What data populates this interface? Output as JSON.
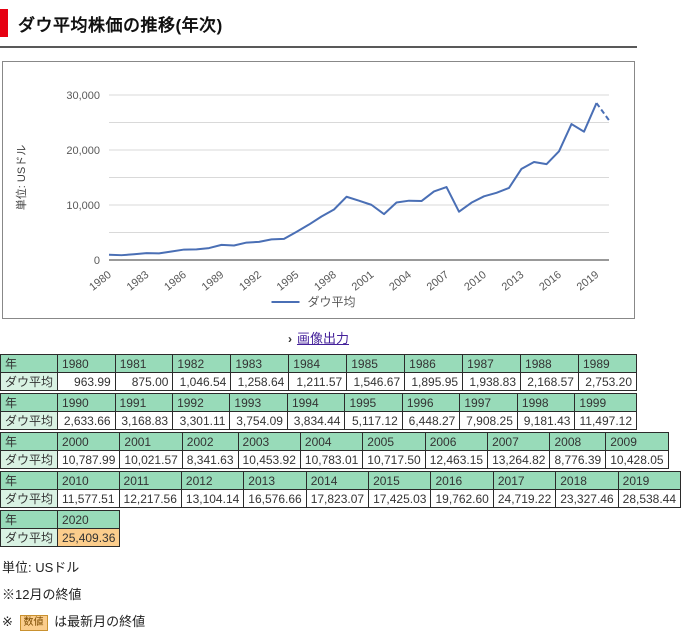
{
  "page": {
    "title": "ダウ平均株価の推移(年次)"
  },
  "chart_data": {
    "type": "line",
    "title": "",
    "xlabel": "",
    "ylabel": "単位: USドル",
    "ylim": [
      0,
      30000
    ],
    "grid_interval": 5000,
    "ytick_label_interval": 10000,
    "xtick_years": [
      1980,
      1983,
      1986,
      1989,
      1992,
      1995,
      1998,
      2001,
      2004,
      2007,
      2010,
      2013,
      2016,
      2019
    ],
    "legend_position": "bottom-center",
    "grid": true,
    "line_color": "#4a6fb5",
    "axis_text_color": "#595959",
    "x": [
      1980,
      1981,
      1982,
      1983,
      1984,
      1985,
      1986,
      1987,
      1988,
      1989,
      1990,
      1991,
      1992,
      1993,
      1994,
      1995,
      1996,
      1997,
      1998,
      1999,
      2000,
      2001,
      2002,
      2003,
      2004,
      2005,
      2006,
      2007,
      2008,
      2009,
      2010,
      2011,
      2012,
      2013,
      2014,
      2015,
      2016,
      2017,
      2018,
      2019,
      2020
    ],
    "series": [
      {
        "name": "ダウ平均",
        "values": [
          963.99,
          875.0,
          1046.54,
          1258.64,
          1211.57,
          1546.67,
          1895.95,
          1938.83,
          2168.57,
          2753.2,
          2633.66,
          3168.83,
          3301.11,
          3754.09,
          3834.44,
          5117.12,
          6448.27,
          7908.25,
          9181.43,
          11497.12,
          10787.99,
          10021.57,
          8341.63,
          10453.92,
          10783.01,
          10717.5,
          12463.15,
          13264.82,
          8776.39,
          10428.05,
          11577.51,
          12217.56,
          13104.14,
          16576.66,
          17823.07,
          17425.03,
          19762.6,
          24719.22,
          23327.46,
          28538.44,
          25409.36
        ]
      }
    ],
    "dashed_last_segment": true
  },
  "image_link": {
    "bullet": "›",
    "label": "画像出力"
  },
  "table": {
    "row_label_year": "年",
    "row_label_value": "ダウ平均",
    "groups": [
      {
        "years": [
          "1980",
          "1981",
          "1982",
          "1983",
          "1984",
          "1985",
          "1986",
          "1987",
          "1988",
          "1989"
        ],
        "values": [
          "963.99",
          "875.00",
          "1,046.54",
          "1,258.64",
          "1,211.57",
          "1,546.67",
          "1,895.95",
          "1,938.83",
          "2,168.57",
          "2,753.20"
        ],
        "highlight": false
      },
      {
        "years": [
          "1990",
          "1991",
          "1992",
          "1993",
          "1994",
          "1995",
          "1996",
          "1997",
          "1998",
          "1999"
        ],
        "values": [
          "2,633.66",
          "3,168.83",
          "3,301.11",
          "3,754.09",
          "3,834.44",
          "5,117.12",
          "6,448.27",
          "7,908.25",
          "9,181.43",
          "11,497.12"
        ],
        "highlight": false
      },
      {
        "years": [
          "2000",
          "2001",
          "2002",
          "2003",
          "2004",
          "2005",
          "2006",
          "2007",
          "2008",
          "2009"
        ],
        "values": [
          "10,787.99",
          "10,021.57",
          "8,341.63",
          "10,453.92",
          "10,783.01",
          "10,717.50",
          "12,463.15",
          "13,264.82",
          "8,776.39",
          "10,428.05"
        ],
        "highlight": false
      },
      {
        "years": [
          "2010",
          "2011",
          "2012",
          "2013",
          "2014",
          "2015",
          "2016",
          "2017",
          "2018",
          "2019"
        ],
        "values": [
          "11,577.51",
          "12,217.56",
          "13,104.14",
          "16,576.66",
          "17,823.07",
          "17,425.03",
          "19,762.60",
          "24,719.22",
          "23,327.46",
          "28,538.44"
        ],
        "highlight": false
      },
      {
        "years": [
          "2020"
        ],
        "values": [
          "25,409.36"
        ],
        "highlight": true
      }
    ]
  },
  "footer": {
    "unit": "単位: USドル",
    "note1": "※12月の終値",
    "note2_prefix": "※",
    "note2_box": "数値",
    "note2_suffix": "は最新月の終値"
  },
  "colors": {
    "accent_red": "#e60012",
    "line_blue": "#4a6fb5",
    "year_cell_green": "#98dbb9",
    "label_cell_green": "#d9f2e3",
    "highlight_orange": "#fbcd8c",
    "link_purple": "#44219a"
  }
}
